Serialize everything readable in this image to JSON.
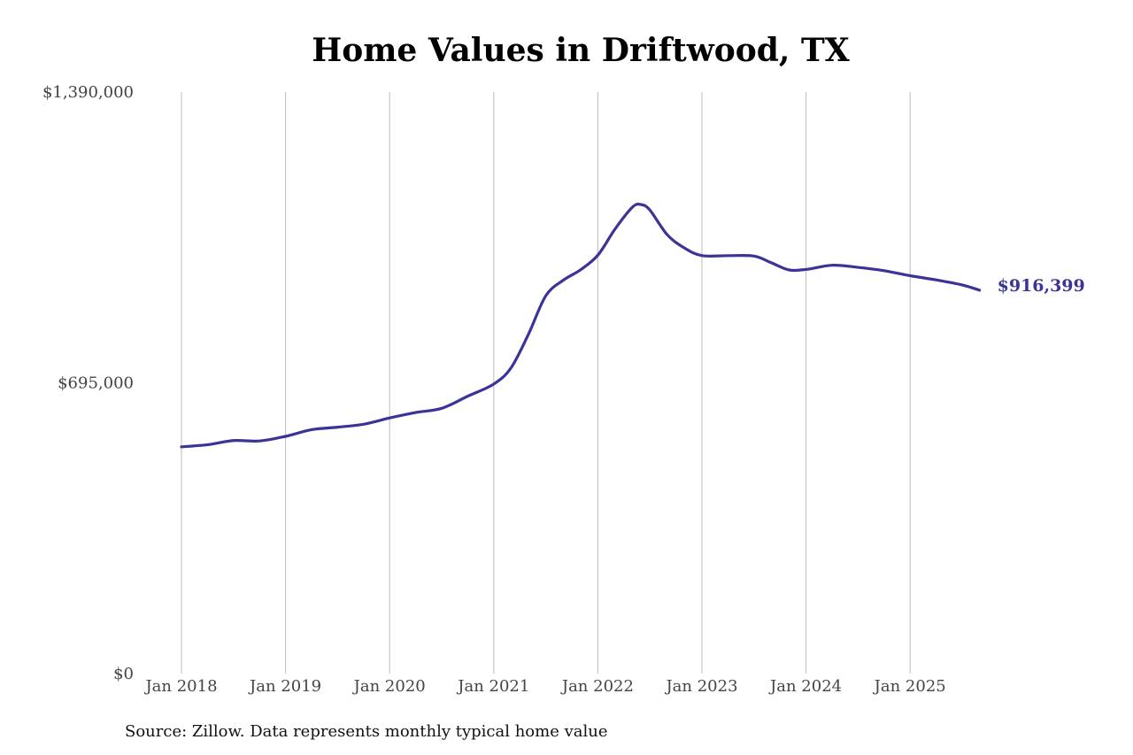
{
  "title": "Home Values in Driftwood, TX",
  "source": "Source: Zillow. Data represents monthly typical home value",
  "colors": {
    "line": "#3b3398",
    "grid": "#bbbbbb"
  },
  "chart_data": {
    "type": "line",
    "title": "Home Values in Driftwood, TX",
    "xlabel": "",
    "ylabel": "",
    "ylim": [
      0,
      1390000
    ],
    "yticks": [
      0,
      695000,
      1390000
    ],
    "ytick_labels": [
      "$0",
      "$695,000",
      "$1,390,000"
    ],
    "x_ticks": [
      "Jan 2018",
      "Jan 2019",
      "Jan 2020",
      "Jan 2021",
      "Jan 2022",
      "Jan 2023",
      "Jan 2024",
      "Jan 2025"
    ],
    "grid": "vertical",
    "end_label": "$916,399",
    "series": [
      {
        "name": "",
        "x": [
          "2018-01",
          "2018-04",
          "2018-07",
          "2018-10",
          "2019-01",
          "2019-04",
          "2019-07",
          "2019-10",
          "2020-01",
          "2020-04",
          "2020-07",
          "2020-10",
          "2021-01",
          "2021-03",
          "2021-05",
          "2021-07",
          "2021-09",
          "2021-11",
          "2022-01",
          "2022-03",
          "2022-05",
          "2022-06",
          "2022-07",
          "2022-09",
          "2022-11",
          "2023-01",
          "2023-04",
          "2023-07",
          "2023-09",
          "2023-11",
          "2024-01",
          "2024-04",
          "2024-07",
          "2024-10",
          "2025-01",
          "2025-04",
          "2025-07",
          "2025-09"
        ],
        "values": [
          542000,
          547000,
          557000,
          556000,
          567000,
          583000,
          589000,
          596000,
          611000,
          624000,
          634000,
          663000,
          692000,
          731000,
          811000,
          903000,
          940000,
          965000,
          1000000,
          1063000,
          1115000,
          1121000,
          1108000,
          1049000,
          1017000,
          999000,
          999000,
          998000,
          982000,
          965000,
          966000,
          976000,
          971000,
          963000,
          951000,
          941000,
          929000,
          916399
        ]
      }
    ]
  }
}
